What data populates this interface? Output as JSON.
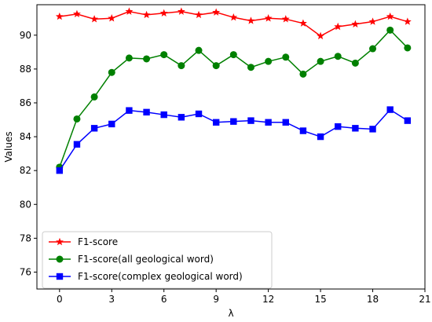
{
  "chart_data": {
    "type": "line",
    "title": "",
    "xlabel": "λ",
    "ylabel": "Values",
    "xlim": [
      -1.3,
      21.0
    ],
    "ylim": [
      75.0,
      91.8
    ],
    "xticks": [
      0,
      3,
      6,
      9,
      12,
      15,
      18,
      21
    ],
    "yticks": [
      76,
      78,
      80,
      82,
      84,
      86,
      88,
      90
    ],
    "legend_position": "lower-left",
    "grid": false,
    "x": [
      0,
      1,
      2,
      3,
      4,
      5,
      6,
      7,
      8,
      9,
      10,
      11,
      12,
      13,
      14,
      15,
      16,
      17,
      18,
      19,
      20
    ],
    "series": [
      {
        "name": "F1-score",
        "color": "#ff0000",
        "marker": "star",
        "values": [
          91.1,
          91.25,
          90.95,
          91.0,
          91.4,
          91.2,
          91.3,
          91.4,
          91.2,
          91.35,
          91.05,
          90.85,
          91.0,
          90.95,
          90.7,
          89.95,
          90.5,
          90.65,
          90.8,
          91.1,
          90.8
        ]
      },
      {
        "name": "F1-score(all geological word)",
        "color": "#008000",
        "marker": "circle",
        "values": [
          82.2,
          85.05,
          86.35,
          87.8,
          88.65,
          88.6,
          88.85,
          88.2,
          89.1,
          88.2,
          88.85,
          88.1,
          88.45,
          88.7,
          87.7,
          88.45,
          88.75,
          88.35,
          89.2,
          90.3,
          89.25
        ]
      },
      {
        "name": "F1-score(complex geological word)",
        "color": "#0000ff",
        "marker": "square",
        "values": [
          82.0,
          83.55,
          84.5,
          84.75,
          85.55,
          85.45,
          85.3,
          85.15,
          85.35,
          84.85,
          84.9,
          84.95,
          84.85,
          84.85,
          84.35,
          84.0,
          84.6,
          84.5,
          84.45,
          85.6,
          84.95
        ]
      }
    ]
  }
}
